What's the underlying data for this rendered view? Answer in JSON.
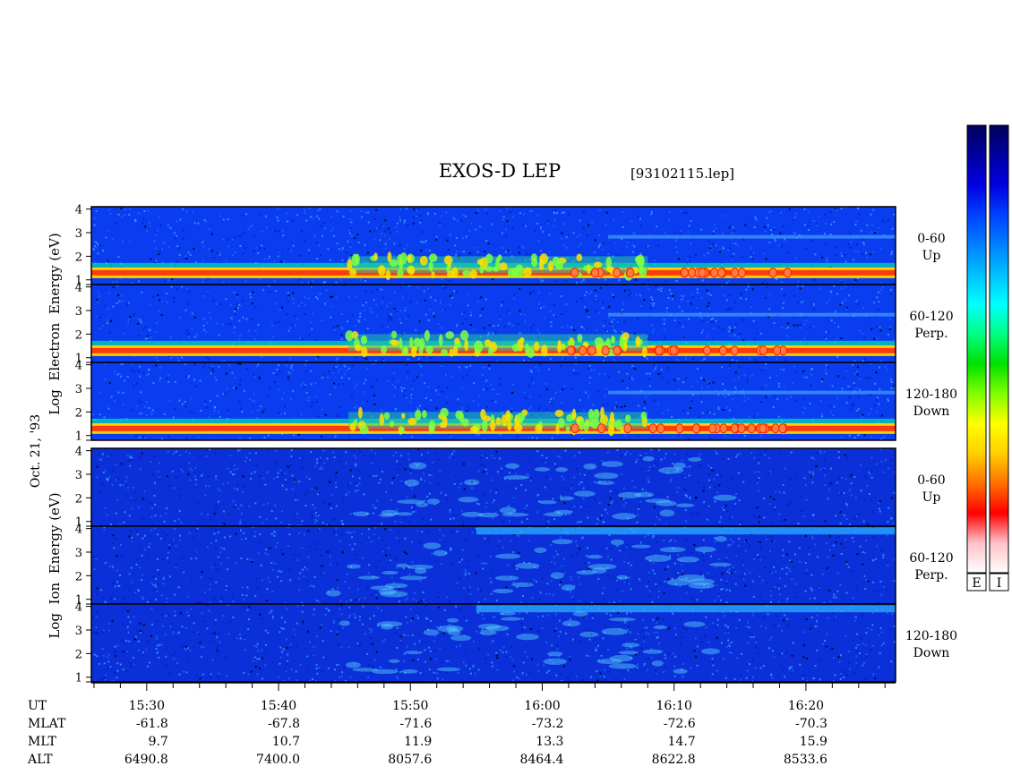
{
  "chart_data": {
    "type": "heatmap",
    "title": "EXOS-D LEP",
    "file_label": "[93102115.lep]",
    "date_label": "Oct. 21, '93",
    "electron_ylabel": "Log  Electron  Energy (eV)",
    "ion_ylabel": "Log  Ion  Energy (eV)",
    "y_ticks": [
      "1",
      "2",
      "3",
      "4"
    ],
    "ylim": [
      0.8,
      4.1
    ],
    "time_ticks": [
      "15:30",
      "15:40",
      "15:50",
      "16:00",
      "16:10",
      "16:20"
    ],
    "time_tick_minutes": [
      930,
      940,
      950,
      960,
      970,
      980
    ],
    "time_range_minutes": [
      925.8,
      986.8
    ],
    "panels": [
      {
        "species": "electron",
        "pitch_range": "0-60",
        "direction": "Up"
      },
      {
        "species": "electron",
        "pitch_range": "60-120",
        "direction": "Perp."
      },
      {
        "species": "electron",
        "pitch_range": "120-180",
        "direction": "Down"
      },
      {
        "species": "ion",
        "pitch_range": "0-60",
        "direction": "Up"
      },
      {
        "species": "ion",
        "pitch_range": "60-120",
        "direction": "Perp."
      },
      {
        "species": "ion",
        "pitch_range": "120-180",
        "direction": "Down"
      }
    ],
    "orbit": {
      "labels": [
        "UT",
        "MLAT",
        "MLT",
        "ALT"
      ],
      "MLAT": [
        "-61.8",
        "-67.8",
        "-71.6",
        "-73.2",
        "-72.6",
        "-70.3"
      ],
      "MLT": [
        "9.7",
        "10.7",
        "11.9",
        "13.3",
        "14.7",
        "15.9"
      ],
      "ALT": [
        "6490.8",
        "7400.0",
        "8057.6",
        "8464.4",
        "8622.8",
        "8533.6"
      ]
    },
    "colorbars": [
      {
        "label": "E"
      },
      {
        "label": "I"
      }
    ],
    "colorscale": [
      "#ffffff",
      "#ffc0c8",
      "#ff0000",
      "#ff7000",
      "#ffd000",
      "#ffff00",
      "#80ff00",
      "#00e000",
      "#00ff80",
      "#00ffff",
      "#00c0ff",
      "#0080ff",
      "#0040ff",
      "#0000e0",
      "#0000a0",
      "#00005a"
    ]
  }
}
